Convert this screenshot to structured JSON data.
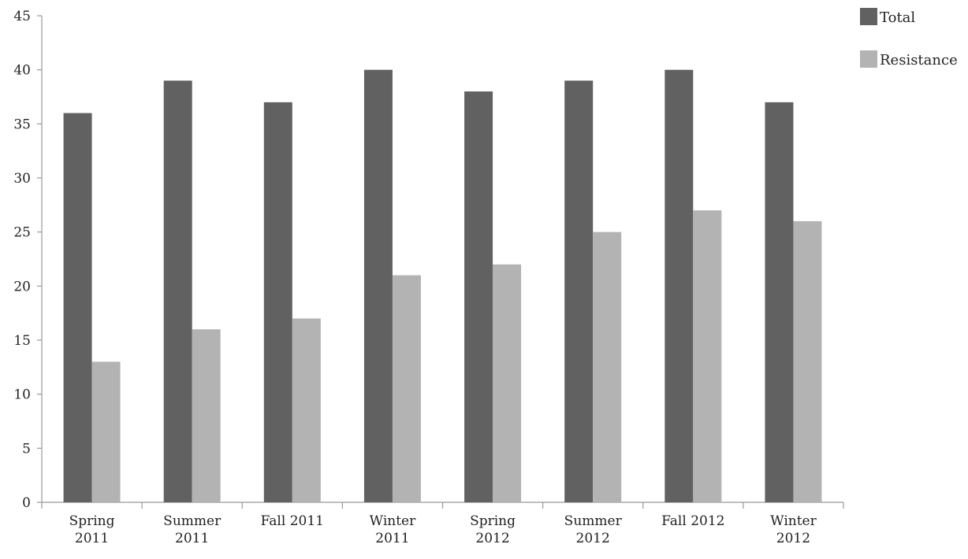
{
  "chart_data": {
    "type": "bar",
    "categories": [
      [
        "Spring",
        "2011"
      ],
      [
        "Summer",
        "2011"
      ],
      [
        "Fall 2011"
      ],
      [
        "Winter",
        "2011"
      ],
      [
        "Spring",
        "2012"
      ],
      [
        "Summer",
        "2012"
      ],
      [
        "Fall 2012"
      ],
      [
        "Winter",
        "2012"
      ]
    ],
    "series": [
      {
        "name": "Total",
        "values": [
          36,
          39,
          37,
          40,
          38,
          39,
          40,
          37
        ],
        "color": "#616161"
      },
      {
        "name": "Resistance",
        "values": [
          13,
          16,
          17,
          21,
          22,
          25,
          27,
          26
        ],
        "color": "#b3b3b3"
      }
    ],
    "yticks": [
      "0",
      "5",
      "10",
      "15",
      "20",
      "25",
      "30",
      "35",
      "40",
      "45"
    ],
    "ylim": [
      0,
      45
    ],
    "title": "",
    "xlabel": "",
    "ylabel": "",
    "legend": "top-right",
    "grid": false
  }
}
